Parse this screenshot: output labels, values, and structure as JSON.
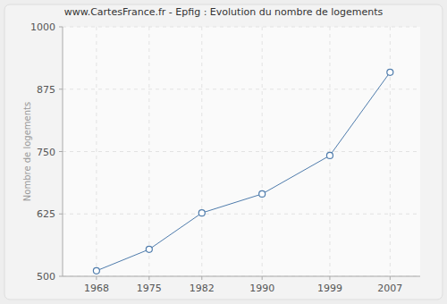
{
  "chart_data": {
    "type": "line",
    "title": "www.CartesFrance.fr - Epfig : Evolution du nombre de logements",
    "y_label": "Nombre de logements",
    "x": [
      1968,
      1975,
      1982,
      1990,
      1999,
      2007
    ],
    "values": [
      511,
      554,
      627,
      665,
      742,
      909
    ],
    "color": "#4f7cac",
    "marker": "circle",
    "xlim": [
      1963.5,
      2011
    ],
    "xticks": [
      1968,
      1975,
      1982,
      1990,
      1999,
      2007
    ],
    "ylim": [
      500,
      1000
    ],
    "yticks": [
      500,
      625,
      750,
      875,
      1000
    ],
    "grid": true
  }
}
